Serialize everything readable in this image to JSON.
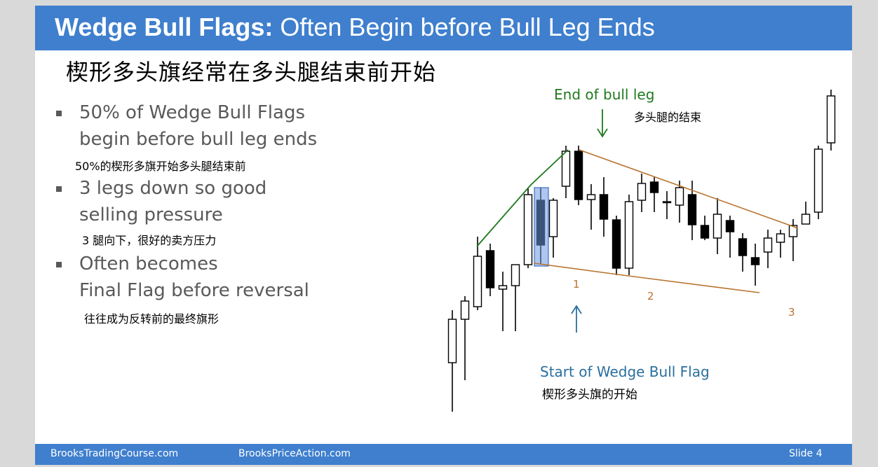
{
  "header": {
    "title_bold": "Wedge Bull Flags:",
    "title_rest": " Often Begin before Bull Leg Ends"
  },
  "cn_title": "楔形多头旗经常在多头腿结束前开始",
  "bullets": [
    {
      "line1": "50% of Wedge Bull Flags",
      "line2": "begin before bull leg ends",
      "cn": "50%的楔形多旗开始多头腿结束前"
    },
    {
      "line1": "3 legs down so good",
      "line2": "selling pressure",
      "cn": "3 腿向下，很好的卖方压力"
    },
    {
      "line1": "Often becomes",
      "line2": "Final Flag before reversal",
      "cn": "往往成为反转前的最终旗形"
    }
  ],
  "chart": {
    "end_label": "End of bull leg",
    "end_label_cn": "多头腿的结束",
    "start_label": "Start of Wedge Bull Flag",
    "start_label_cn": "楔形多头旗的开始",
    "leg_labels": [
      "1",
      "2",
      "3"
    ],
    "colors": {
      "green": "#1e7a1e",
      "orange": "#b8732e",
      "blue_label": "#2a6f9e",
      "highlight": "#4a7fd4"
    }
  },
  "footer": {
    "left": "BrooksTradingCourse.com",
    "center": "BrooksPriceAction.com",
    "slide": "Slide  4"
  }
}
